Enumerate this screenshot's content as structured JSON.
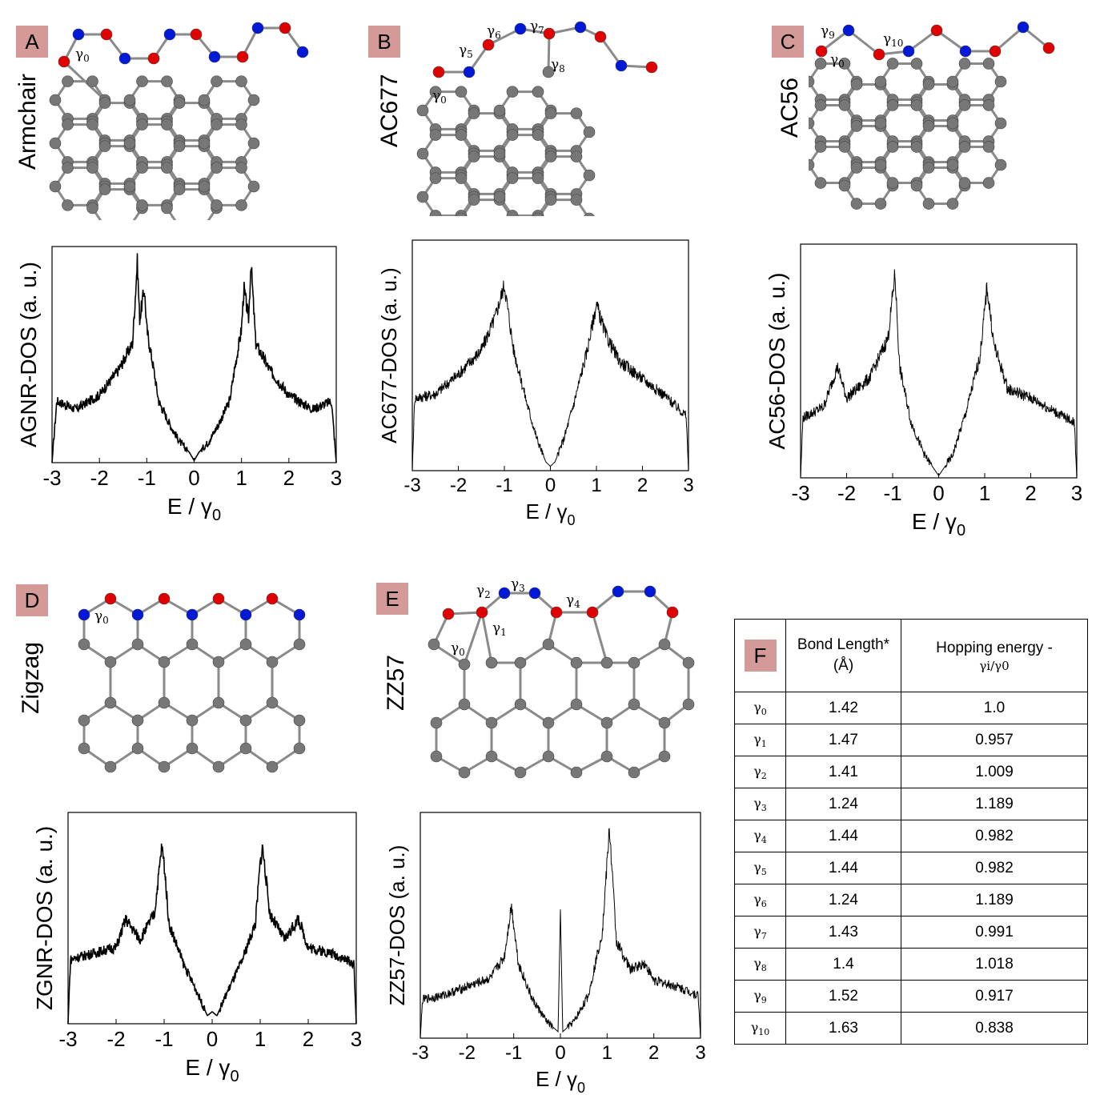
{
  "colors": {
    "label_bg": "#d49a98",
    "atom_gray": "#777777",
    "atom_red": "#e00000",
    "atom_blue": "#0018d8",
    "bond": "#8a8a8a",
    "line": "#000000"
  },
  "panels": {
    "A": {
      "label": "A",
      "title": "Armchair",
      "ylabel": "AGNR-DOS (a. u.)",
      "annot": [
        {
          "s": "γ",
          "i": "0"
        }
      ]
    },
    "B": {
      "label": "B",
      "title": "AC677",
      "ylabel": "AC677-DOS (a. u.)",
      "annot": [
        {
          "s": "γ",
          "i": "0"
        },
        {
          "s": "γ",
          "i": "5"
        },
        {
          "s": "γ",
          "i": "6"
        },
        {
          "s": "γ",
          "i": "7"
        },
        {
          "s": "γ",
          "i": "8"
        }
      ]
    },
    "C": {
      "label": "C",
      "title": "AC56",
      "ylabel": "AC56-DOS (a. u.)",
      "annot": [
        {
          "s": "γ",
          "i": "9"
        },
        {
          "s": "γ",
          "i": "0"
        },
        {
          "s": "γ",
          "i": "10"
        }
      ]
    },
    "D": {
      "label": "D",
      "title": "Zigzag",
      "ylabel": "ZGNR-DOS (a. u.)",
      "annot": [
        {
          "s": "γ",
          "i": "0"
        }
      ]
    },
    "E": {
      "label": "E",
      "title": "ZZ57",
      "ylabel": "ZZ57-DOS (a. u.)",
      "annot": [
        {
          "s": "γ",
          "i": "2"
        },
        {
          "s": "γ",
          "i": "3"
        },
        {
          "s": "γ",
          "i": "4"
        },
        {
          "s": "γ",
          "i": "1"
        },
        {
          "s": "γ",
          "i": "0"
        }
      ]
    },
    "F": {
      "label": "F"
    }
  },
  "xlabel": {
    "main": "E / γ",
    "sub": "0"
  },
  "chart_data": [
    {
      "id": "A",
      "type": "line",
      "title": "",
      "xlabel": "E / γ0",
      "ylabel": "AGNR-DOS (a. u.)",
      "xlim": [
        -3,
        3
      ],
      "ylim": [
        0,
        1
      ],
      "xticks": [
        "-3",
        "-2",
        "-1",
        "0",
        "1",
        "2",
        "3"
      ],
      "x": [
        -3.0,
        -2.9,
        -2.5,
        -2.0,
        -1.6,
        -1.3,
        -1.2,
        -1.15,
        -1.05,
        -1.0,
        -0.85,
        -0.75,
        -0.5,
        -0.3,
        -0.1,
        0.0,
        0.1,
        0.3,
        0.5,
        0.75,
        0.85,
        1.0,
        1.05,
        1.15,
        1.2,
        1.3,
        1.6,
        2.0,
        2.5,
        2.9,
        3.0
      ],
      "y": [
        0.0,
        0.3,
        0.26,
        0.33,
        0.45,
        0.58,
        0.98,
        0.7,
        0.85,
        0.65,
        0.45,
        0.3,
        0.18,
        0.1,
        0.05,
        0.01,
        0.05,
        0.1,
        0.18,
        0.3,
        0.45,
        0.65,
        0.85,
        0.7,
        0.98,
        0.58,
        0.45,
        0.33,
        0.26,
        0.3,
        0.0
      ]
    },
    {
      "id": "B",
      "type": "line",
      "title": "",
      "xlabel": "E / γ0",
      "ylabel": "AC677-DOS (a. u.)",
      "xlim": [
        -3,
        3
      ],
      "ylim": [
        0,
        1
      ],
      "xticks": [
        "-3",
        "-2",
        "-1",
        "0",
        "1",
        "2",
        "3"
      ],
      "x": [
        -3.0,
        -2.95,
        -2.5,
        -2.0,
        -1.5,
        -1.2,
        -1.0,
        -0.8,
        -0.5,
        -0.3,
        -0.1,
        0.0,
        0.1,
        0.3,
        0.5,
        0.8,
        1.0,
        1.2,
        1.5,
        2.0,
        2.5,
        2.95,
        3.0
      ],
      "y": [
        0.0,
        0.33,
        0.35,
        0.44,
        0.55,
        0.7,
        0.85,
        0.55,
        0.3,
        0.15,
        0.04,
        0.02,
        0.04,
        0.15,
        0.3,
        0.55,
        0.76,
        0.62,
        0.5,
        0.42,
        0.34,
        0.25,
        0.0
      ]
    },
    {
      "id": "C",
      "type": "line",
      "title": "",
      "xlabel": "E / γ0",
      "ylabel": "AC56-DOS (a. u.)",
      "xlim": [
        -3,
        3
      ],
      "ylim": [
        0,
        1
      ],
      "xticks": [
        "-3",
        "-2",
        "-1",
        "0",
        "1",
        "2",
        "3"
      ],
      "x": [
        -3.0,
        -2.95,
        -2.5,
        -2.2,
        -2.0,
        -1.5,
        -1.1,
        -0.95,
        -0.85,
        -0.6,
        -0.3,
        -0.1,
        0.0,
        0.1,
        0.3,
        0.6,
        0.9,
        1.05,
        1.2,
        1.5,
        2.0,
        2.5,
        2.95,
        3.0
      ],
      "y": [
        0.0,
        0.27,
        0.32,
        0.5,
        0.36,
        0.45,
        0.63,
        0.92,
        0.5,
        0.25,
        0.1,
        0.04,
        0.01,
        0.04,
        0.1,
        0.3,
        0.55,
        0.86,
        0.6,
        0.4,
        0.36,
        0.3,
        0.25,
        0.0
      ]
    },
    {
      "id": "D",
      "type": "line",
      "title": "",
      "xlabel": "E / γ0",
      "ylabel": "ZGNR-DOS (a. u.)",
      "xlim": [
        -3,
        3
      ],
      "ylim": [
        0,
        1
      ],
      "xticks": [
        "-3",
        "-2",
        "-1",
        "0",
        "1",
        "2",
        "3"
      ],
      "x": [
        -3.0,
        -2.95,
        -2.5,
        -2.0,
        -1.8,
        -1.5,
        -1.2,
        -1.05,
        -1.0,
        -0.9,
        -0.6,
        -0.3,
        -0.1,
        0.0,
        0.1,
        0.3,
        0.6,
        0.9,
        1.0,
        1.05,
        1.2,
        1.5,
        1.8,
        2.0,
        2.5,
        2.95,
        3.0
      ],
      "y": [
        0.0,
        0.32,
        0.35,
        0.38,
        0.52,
        0.42,
        0.55,
        0.88,
        0.8,
        0.5,
        0.3,
        0.15,
        0.04,
        0.06,
        0.04,
        0.15,
        0.3,
        0.5,
        0.8,
        0.88,
        0.55,
        0.42,
        0.52,
        0.38,
        0.35,
        0.3,
        0.0
      ]
    },
    {
      "id": "E",
      "type": "line",
      "title": "",
      "xlabel": "E / γ0",
      "ylabel": "ZZ57-DOS (a. u.)",
      "xlim": [
        -3,
        3
      ],
      "ylim": [
        0,
        1
      ],
      "xticks": [
        "-3",
        "-2",
        "-1",
        "0",
        "1",
        "2",
        "3"
      ],
      "x": [
        -3.0,
        -2.95,
        -2.5,
        -2.0,
        -1.5,
        -1.2,
        -1.05,
        -0.9,
        -0.6,
        -0.3,
        -0.05,
        0.0,
        0.05,
        0.3,
        0.6,
        0.9,
        1.05,
        1.2,
        1.5,
        1.8,
        2.0,
        2.5,
        2.95,
        3.0
      ],
      "y": [
        0.0,
        0.18,
        0.2,
        0.24,
        0.28,
        0.38,
        0.62,
        0.35,
        0.18,
        0.08,
        0.03,
        0.6,
        0.03,
        0.08,
        0.2,
        0.5,
        0.98,
        0.45,
        0.32,
        0.35,
        0.27,
        0.24,
        0.2,
        0.0
      ]
    }
  ],
  "table": {
    "label": "F",
    "headers": {
      "bond": "Bond Length* (Å)",
      "hop_main": "Hopping energy -",
      "hop_ratio": "γi/γ0"
    },
    "rows": [
      {
        "g": "γ",
        "i": "0",
        "bond": "1.42",
        "hop": "1.0"
      },
      {
        "g": "γ",
        "i": "1",
        "bond": "1.47",
        "hop": "0.957"
      },
      {
        "g": "γ",
        "i": "2",
        "bond": "1.41",
        "hop": "1.009"
      },
      {
        "g": "γ",
        "i": "3",
        "bond": "1.24",
        "hop": "1.189"
      },
      {
        "g": "γ",
        "i": "4",
        "bond": "1.44",
        "hop": "0.982"
      },
      {
        "g": "γ",
        "i": "5",
        "bond": "1.44",
        "hop": "0.982"
      },
      {
        "g": "γ",
        "i": "6",
        "bond": "1.24",
        "hop": "1.189"
      },
      {
        "g": "γ",
        "i": "7",
        "bond": "1.43",
        "hop": "0.991"
      },
      {
        "g": "γ",
        "i": "8",
        "bond": "1.4",
        "hop": "1.018"
      },
      {
        "g": "γ",
        "i": "9",
        "bond": "1.52",
        "hop": "0.917"
      },
      {
        "g": "γ",
        "i": "10",
        "bond": "1.63",
        "hop": "0.838"
      }
    ]
  }
}
